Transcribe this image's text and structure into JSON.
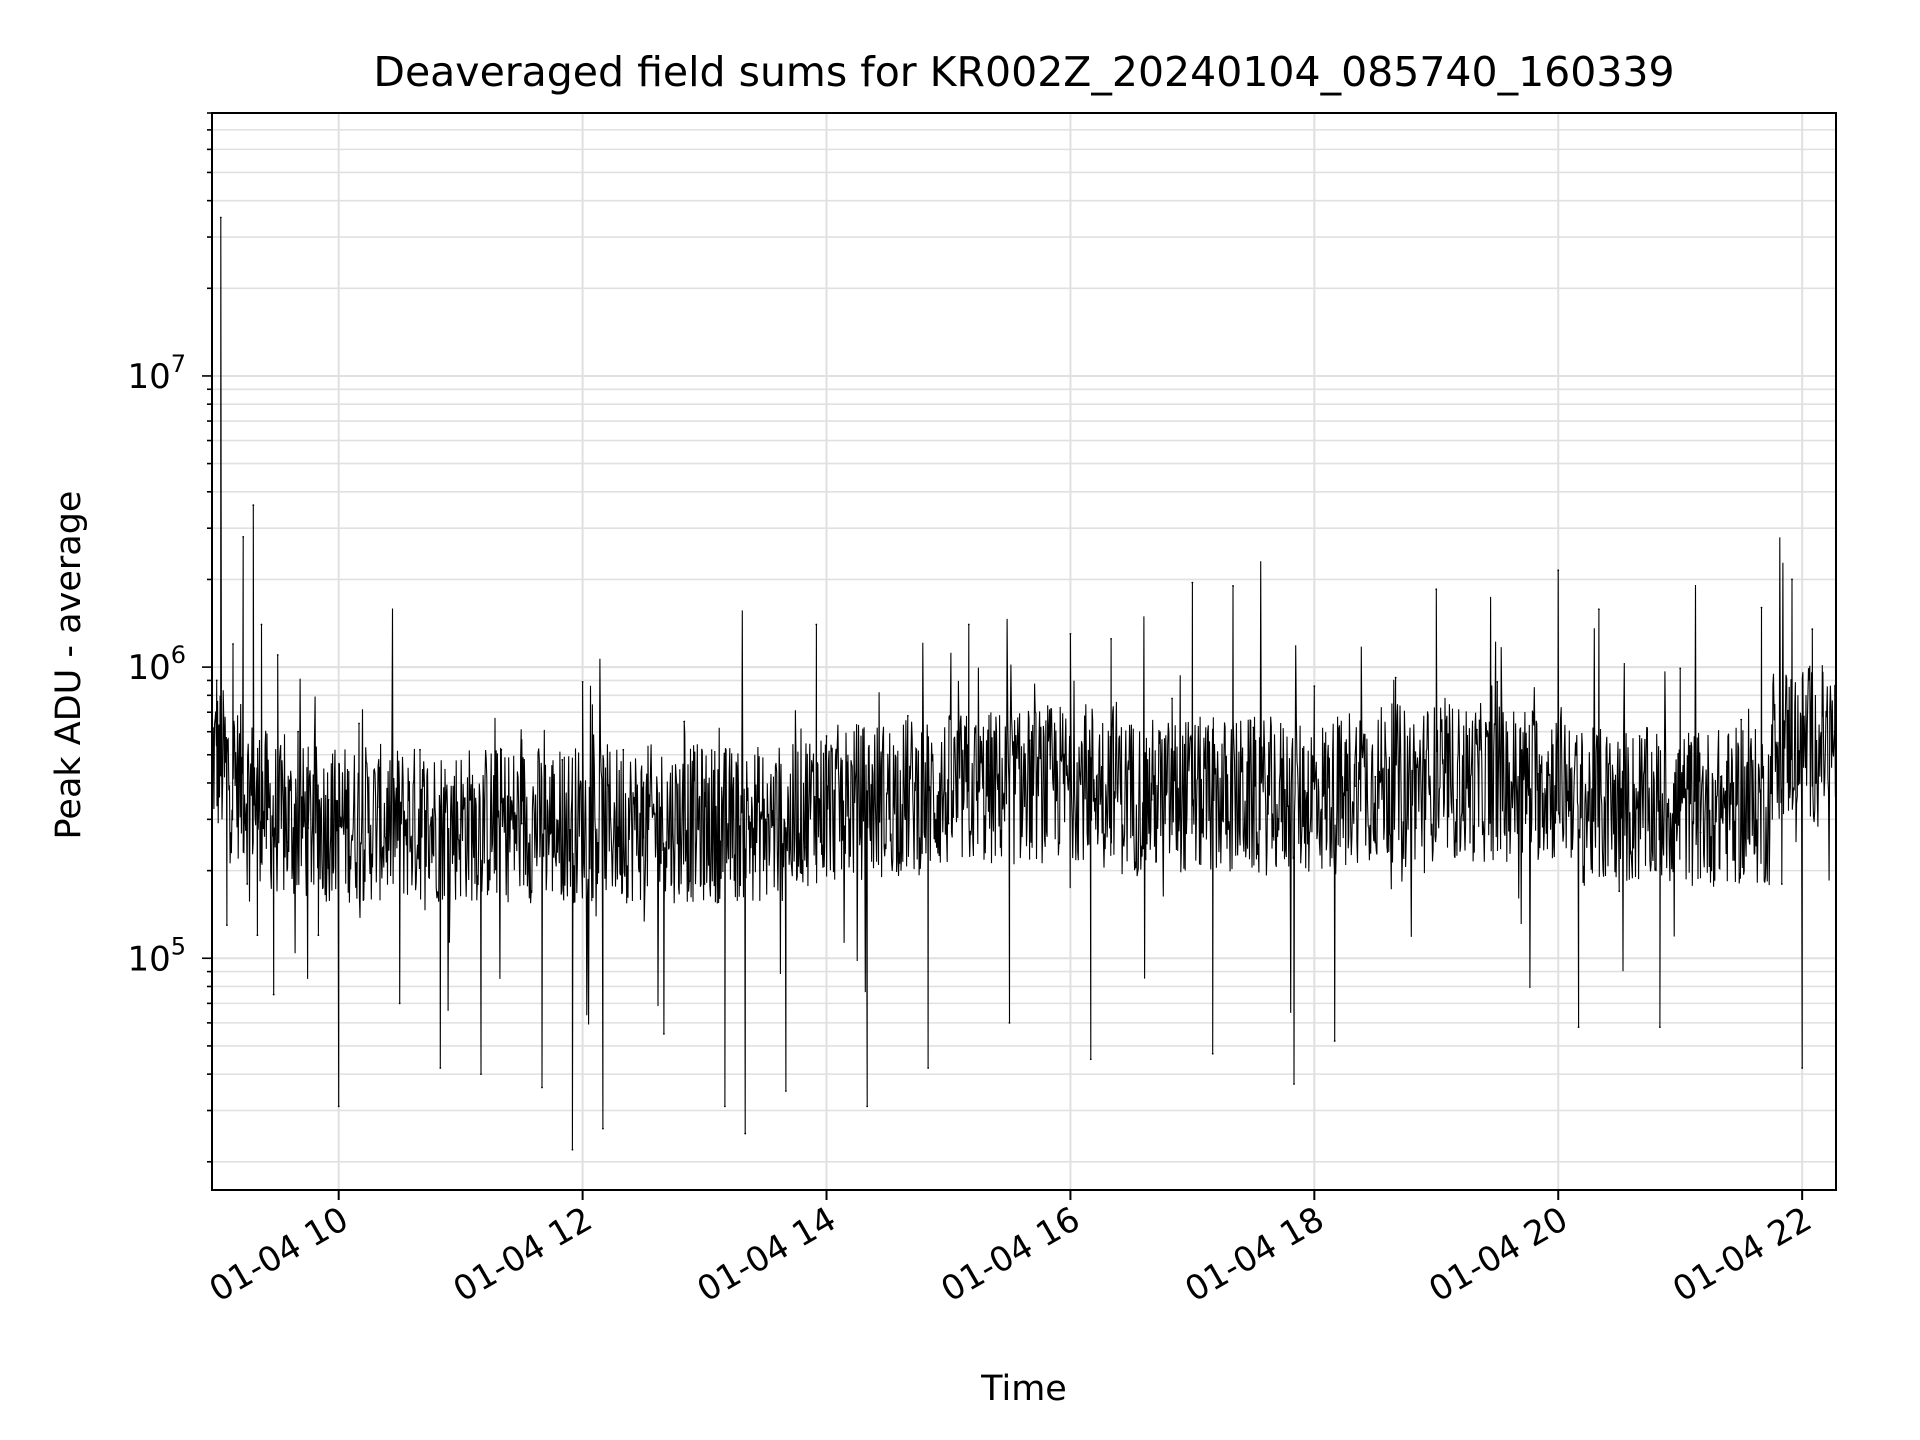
{
  "chart_data": {
    "type": "line",
    "title": "Deaveraged field sums for KR002Z_20240104_085740_160339",
    "xlabel": "Time",
    "ylabel": "Peak ADU - average",
    "x_scale": "time",
    "y_scale": "log",
    "xlim": [
      "2024-01-04 08:57:40",
      "2024-01-04 22:16:39"
    ],
    "ylim": [
      16000,
      80000000
    ],
    "grid": true,
    "legend": "none",
    "x_ticks": [
      {
        "time": "2024-01-04 10:00",
        "label": "01-04 10"
      },
      {
        "time": "2024-01-04 12:00",
        "label": "01-04 12"
      },
      {
        "time": "2024-01-04 14:00",
        "label": "01-04 14"
      },
      {
        "time": "2024-01-04 16:00",
        "label": "01-04 16"
      },
      {
        "time": "2024-01-04 18:00",
        "label": "01-04 18"
      },
      {
        "time": "2024-01-04 20:00",
        "label": "01-04 20"
      },
      {
        "time": "2024-01-04 22:00",
        "label": "01-04 22"
      }
    ],
    "y_ticks": [
      {
        "value": 100000,
        "base": "10",
        "exp": "5"
      },
      {
        "value": 1000000,
        "base": "10",
        "exp": "6"
      },
      {
        "value": 10000000,
        "base": "10",
        "exp": "7"
      }
    ],
    "line_color": "#000000",
    "grid_color": "#e0e0e0",
    "series": [
      {
        "x": [
          "2024-01-04 08:57:40",
          "2024-01-04 09:00",
          "2024-01-04 09:02",
          "2024-01-04 09:05",
          "2024-01-04 09:08",
          "2024-01-04 09:10",
          "2024-01-04 09:13",
          "2024-01-04 09:15",
          "2024-01-04 09:18",
          "2024-01-04 09:20",
          "2024-01-04 09:22",
          "2024-01-04 09:25",
          "2024-01-04 09:28",
          "2024-01-04 09:30",
          "2024-01-04 09:35",
          "2024-01-04 09:40",
          "2024-01-04 09:45",
          "2024-01-04 09:50",
          "2024-01-04 09:55",
          "2024-01-04 10:00",
          "2024-01-04 10:10",
          "2024-01-04 10:20",
          "2024-01-04 10:30",
          "2024-01-04 10:40",
          "2024-01-04 10:50",
          "2024-01-04 11:00",
          "2024-01-04 11:10",
          "2024-01-04 11:20",
          "2024-01-04 11:30",
          "2024-01-04 11:40",
          "2024-01-04 11:50",
          "2024-01-04 11:55",
          "2024-01-04 12:00",
          "2024-01-04 12:10",
          "2024-01-04 12:20",
          "2024-01-04 12:30",
          "2024-01-04 12:40",
          "2024-01-04 12:50",
          "2024-01-04 13:00",
          "2024-01-04 13:10",
          "2024-01-04 13:20",
          "2024-01-04 13:30",
          "2024-01-04 13:40",
          "2024-01-04 13:50",
          "2024-01-04 13:55",
          "2024-01-04 14:00",
          "2024-01-04 14:10",
          "2024-01-04 14:20",
          "2024-01-04 14:30",
          "2024-01-04 14:40",
          "2024-01-04 14:50",
          "2024-01-04 15:00",
          "2024-01-04 15:10",
          "2024-01-04 15:20",
          "2024-01-04 15:30",
          "2024-01-04 15:40",
          "2024-01-04 15:50",
          "2024-01-04 16:00",
          "2024-01-04 16:10",
          "2024-01-04 16:20",
          "2024-01-04 16:30",
          "2024-01-04 16:40",
          "2024-01-04 16:50",
          "2024-01-04 17:00",
          "2024-01-04 17:10",
          "2024-01-04 17:20",
          "2024-01-04 17:30",
          "2024-01-04 17:40",
          "2024-01-04 17:50",
          "2024-01-04 18:00",
          "2024-01-04 18:10",
          "2024-01-04 18:20",
          "2024-01-04 18:30",
          "2024-01-04 18:40",
          "2024-01-04 18:50",
          "2024-01-04 19:00",
          "2024-01-04 19:10",
          "2024-01-04 19:20",
          "2024-01-04 19:30",
          "2024-01-04 19:40",
          "2024-01-04 19:50",
          "2024-01-04 20:00",
          "2024-01-04 20:10",
          "2024-01-04 20:20",
          "2024-01-04 20:30",
          "2024-01-04 20:40",
          "2024-01-04 20:50",
          "2024-01-04 21:00",
          "2024-01-04 21:10",
          "2024-01-04 21:20",
          "2024-01-04 21:30",
          "2024-01-04 21:40",
          "2024-01-04 21:50",
          "2024-01-04 21:55",
          "2024-01-04 22:00",
          "2024-01-04 22:05",
          "2024-01-04 22:10",
          "2024-01-04 22:16"
        ],
        "y": [
          300000,
          900000,
          35000000,
          130000,
          1200000,
          400000,
          2800000,
          180000,
          3600000,
          120000,
          1400000,
          300000,
          75000,
          1100000,
          250000,
          600000,
          280000,
          120000,
          350000,
          31000,
          640000,
          330000,
          70000,
          520000,
          42000,
          300000,
          40000,
          520000,
          290000,
          36000,
          480000,
          22000,
          890000,
          26000,
          520000,
          260000,
          55000,
          650000,
          180000,
          31000,
          25000,
          300000,
          35000,
          240000,
          1400000,
          580000,
          470000,
          31000,
          380000,
          680000,
          42000,
          290000,
          1400000,
          460000,
          60000,
          560000,
          500000,
          1300000,
          45000,
          1250000,
          480000,
          350000,
          780000,
          1950000,
          47000,
          1900000,
          620000,
          280000,
          37000,
          860000,
          52000,
          390000,
          420000,
          920000,
          280000,
          1850000,
          350000,
          610000,
          890000,
          370000,
          430000,
          2150000,
          58000,
          1580000,
          170000,
          580000,
          58000,
          990000,
          270000,
          420000,
          660000,
          1600000,
          180000,
          2000000,
          42000,
          1350000,
          680000,
          600000
        ]
      }
    ]
  }
}
